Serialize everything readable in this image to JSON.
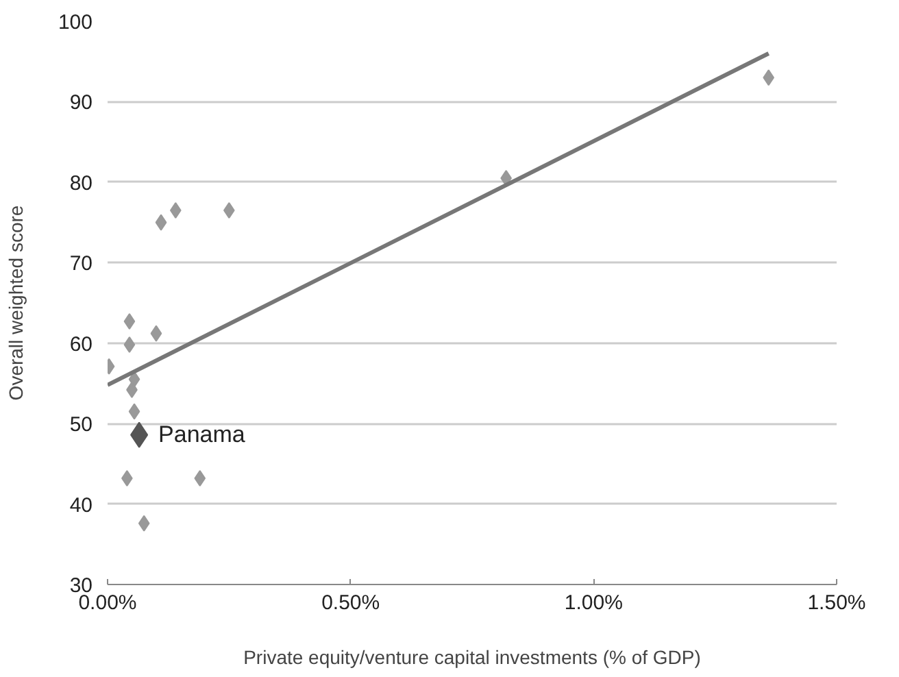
{
  "chart_data": {
    "type": "scatter",
    "xlabel": "Private equity/venture capital investments (% of GDP)",
    "ylabel": "Overall weighted score",
    "xlim": [
      0,
      1.5
    ],
    "ylim": [
      30,
      100
    ],
    "xticks": [
      {
        "value": 0,
        "label": "0.00%"
      },
      {
        "value": 0.5,
        "label": "0.50%"
      },
      {
        "value": 1.0,
        "label": "1.00%"
      },
      {
        "value": 1.5,
        "label": "1.50%"
      }
    ],
    "yticks": [
      30,
      40,
      50,
      60,
      70,
      80,
      90,
      100
    ],
    "grid": "y",
    "marker": "diamond",
    "series": [
      {
        "color": "#999999",
        "x": [
          0.003,
          0.04,
          0.045,
          0.045,
          0.05,
          0.055,
          0.055,
          0.075,
          0.1,
          0.11,
          0.14,
          0.19,
          0.25,
          0.82,
          1.36
        ],
        "values": [
          57.1,
          43.2,
          62.7,
          59.8,
          54.2,
          55.5,
          51.5,
          37.6,
          61.2,
          75,
          76.5,
          43.2,
          76.5,
          80.5,
          93
        ]
      },
      {
        "name": "Panama",
        "color": "#555555",
        "x": [
          0.065
        ],
        "values": [
          48.6
        ]
      },
      {
        "type": "line",
        "marker": "none",
        "color": "#777777",
        "x": [
          0,
          1.36
        ],
        "values": [
          54.8,
          96
        ]
      }
    ]
  }
}
